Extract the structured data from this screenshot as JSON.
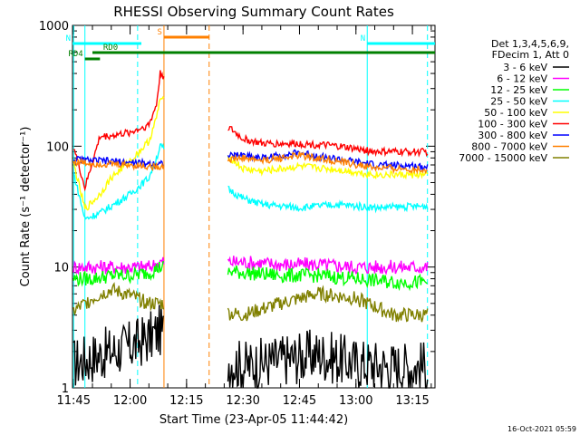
{
  "chart_data": {
    "type": "line",
    "title": "RHESSI Observing Summary Count Rates",
    "xlabel": "Start Time (23-Apr-05 11:44:42)",
    "ylabel": "Count Rate (s⁻¹ detector⁻¹)",
    "y_scale": "log",
    "ylim": [
      1,
      1000
    ],
    "xlim": [
      "11:44:42",
      "13:21:00"
    ],
    "x_ticks": [
      "11:45",
      "12:00",
      "12:15",
      "12:30",
      "12:45",
      "13:00",
      "13:15"
    ],
    "y_ticks": [
      "1",
      "10",
      "100",
      "1000"
    ],
    "info": [
      "Det 1,3,4,5,6,9,",
      "FDecim 1, Att 0"
    ],
    "timestamp": "16-Oct-2021 05:59",
    "legend_position": "right",
    "series": [
      {
        "name": "3 - 6 keV",
        "color": "#000000",
        "x": [
          "11:45",
          "11:50",
          "11:55",
          "12:00",
          "12:05",
          "12:08",
          "12:30",
          "12:40",
          "12:50",
          "13:00",
          "13:10",
          "13:19"
        ],
        "y": [
          1.6,
          1.8,
          2.0,
          2.2,
          2.6,
          3.0,
          1.5,
          1.7,
          1.9,
          1.6,
          1.5,
          1.5
        ]
      },
      {
        "name": "6 - 12 keV",
        "color": "#ff00ff",
        "x": [
          "11:45",
          "11:50",
          "11:55",
          "12:00",
          "12:05",
          "12:08",
          "12:30",
          "12:40",
          "12:50",
          "13:00",
          "13:10",
          "13:19"
        ],
        "y": [
          10,
          10,
          10,
          10,
          10,
          11,
          11,
          10.5,
          10.5,
          10,
          10,
          10
        ]
      },
      {
        "name": "12 - 25 keV",
        "color": "#00ff00",
        "x": [
          "11:45",
          "11:50",
          "11:55",
          "12:00",
          "12:05",
          "12:08",
          "12:30",
          "12:40",
          "12:50",
          "13:00",
          "13:10",
          "13:19"
        ],
        "y": [
          8,
          8,
          8.5,
          8.5,
          9,
          10,
          9,
          8.5,
          8.5,
          8,
          7.5,
          7.5
        ]
      },
      {
        "name": "25 - 50 keV",
        "color": "#00ffff",
        "x": [
          "11:45",
          "11:48",
          "11:52",
          "11:55",
          "12:00",
          "12:05",
          "12:07",
          "12:08",
          "12:30",
          "12:35",
          "12:45",
          "12:55",
          "13:05",
          "13:19"
        ],
        "y": [
          60,
          25,
          28,
          32,
          40,
          55,
          80,
          100,
          37,
          33,
          31,
          33,
          31,
          32
        ]
      },
      {
        "name": "50 - 100 keV",
        "color": "#ffff00",
        "x": [
          "11:45",
          "11:48",
          "11:52",
          "11:55",
          "12:00",
          "12:05",
          "12:07",
          "12:08",
          "12:30",
          "12:35",
          "12:45",
          "12:55",
          "13:05",
          "13:19"
        ],
        "y": [
          72,
          30,
          40,
          55,
          75,
          110,
          170,
          250,
          65,
          62,
          68,
          64,
          58,
          58
        ]
      },
      {
        "name": "100 - 300 keV",
        "color": "#ff0000",
        "x": [
          "11:45",
          "11:48",
          "11:52",
          "11:55",
          "12:00",
          "12:05",
          "12:07",
          "12:08",
          "12:30",
          "12:35",
          "12:45",
          "12:55",
          "13:05",
          "13:19"
        ],
        "y": [
          100,
          45,
          120,
          122,
          130,
          150,
          220,
          400,
          115,
          105,
          105,
          100,
          90,
          90
        ]
      },
      {
        "name": "300 - 800 keV",
        "color": "#0000ff",
        "x": [
          "11:45",
          "11:50",
          "11:55",
          "12:00",
          "12:05",
          "12:08",
          "12:30",
          "12:35",
          "12:45",
          "12:55",
          "13:05",
          "13:19"
        ],
        "y": [
          78,
          76,
          75,
          73,
          72,
          72,
          85,
          80,
          88,
          78,
          70,
          68
        ]
      },
      {
        "name": "800 - 7000 keV",
        "color": "#ff8000",
        "x": [
          "11:45",
          "11:50",
          "11:55",
          "12:00",
          "12:05",
          "12:08",
          "12:30",
          "12:35",
          "12:45",
          "12:55",
          "13:05",
          "13:19"
        ],
        "y": [
          74,
          72,
          71,
          70,
          68,
          68,
          80,
          76,
          84,
          75,
          66,
          64
        ]
      },
      {
        "name": "7000 - 15000 keV",
        "color": "#808000",
        "x": [
          "11:45",
          "11:50",
          "11:55",
          "12:00",
          "12:05",
          "12:08",
          "12:30",
          "12:40",
          "12:50",
          "13:00",
          "13:10",
          "13:19"
        ],
        "y": [
          4.3,
          5.5,
          6.5,
          5.8,
          5.0,
          5.0,
          4.0,
          5.0,
          6.0,
          5.5,
          4.0,
          4.0
        ]
      }
    ],
    "annotations": [
      {
        "label": "S",
        "color": "#ff8000",
        "x_start": "12:09",
        "x_end": "12:21"
      },
      {
        "label": "N",
        "color": "#00ffff",
        "x_start": "11:44:42",
        "x_end": "12:03"
      },
      {
        "label": "N",
        "color": "#00ffff",
        "x_start": "13:03",
        "x_end": "13:21"
      },
      {
        "label": "RD0",
        "color": "#008000",
        "x_start": "11:50",
        "x_end": "13:21"
      },
      {
        "label": "RD4",
        "color": "#008000",
        "x_start": "11:48",
        "x_end": "11:52"
      }
    ],
    "vlines": [
      {
        "x": "11:45",
        "color": "#00ffff",
        "style": "solid"
      },
      {
        "x": "11:48",
        "color": "#00ffff",
        "style": "solid"
      },
      {
        "x": "12:02",
        "color": "#00ffff",
        "style": "dashed"
      },
      {
        "x": "12:09",
        "color": "#ff8000",
        "style": "solid"
      },
      {
        "x": "12:21",
        "color": "#ff8000",
        "style": "dashed"
      },
      {
        "x": "13:03",
        "color": "#00ffff",
        "style": "solid"
      },
      {
        "x": "13:19",
        "color": "#00ffff",
        "style": "dashed"
      }
    ],
    "data_gap": [
      "12:09",
      "12:26"
    ]
  }
}
